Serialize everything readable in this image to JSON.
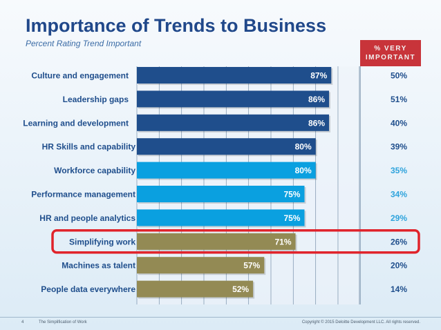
{
  "header": {
    "title": "Importance of Trends to Business",
    "subtitle": "Percent Rating Trend Important",
    "very_important_line1": "% VERY",
    "very_important_line2": "IMPORTANT"
  },
  "footer": {
    "page_number": "4",
    "left_text": "The Simplification of Work",
    "right_text": "Copyright © 2015 Deloitte Development LLC. All rights reserved."
  },
  "colors": {
    "dark_blue": "#1f4e8c",
    "light_blue": "#0aa0e0",
    "olive": "#938a54",
    "pct_dark": "#1f4e8c",
    "pct_light": "#2ea3dc",
    "highlight": "#e0232b"
  },
  "chart_data": {
    "type": "bar",
    "orientation": "horizontal",
    "title": "Importance of Trends to Business",
    "subtitle": "Percent Rating Trend Important",
    "xlim": [
      0,
      100
    ],
    "grid": true,
    "categories": [
      "Culture and engagement",
      "Leadership gaps",
      "Learning and development",
      "HR Skills and capability",
      "Workforce capability",
      "Performance management",
      "HR and people analytics",
      "Simplifying work",
      "Machines as talent",
      "People data everywhere"
    ],
    "values": [
      87,
      86,
      86,
      80,
      80,
      75,
      75,
      71,
      57,
      52
    ],
    "value_labels": [
      "87%",
      "86%",
      "86%",
      "80%",
      "80%",
      "75%",
      "75%",
      "71%",
      "57%",
      "52%"
    ],
    "bar_colors": [
      "dark_blue",
      "dark_blue",
      "dark_blue",
      "dark_blue",
      "light_blue",
      "light_blue",
      "light_blue",
      "olive",
      "olive",
      "olive"
    ],
    "very_important": [
      "50%",
      "51%",
      "40%",
      "39%",
      "35%",
      "34%",
      "29%",
      "26%",
      "20%",
      "14%"
    ],
    "very_important_colors": [
      "pct_dark",
      "pct_dark",
      "pct_dark",
      "pct_dark",
      "pct_light",
      "pct_light",
      "pct_light",
      "pct_dark",
      "pct_dark",
      "pct_dark"
    ],
    "highlighted_category": "Simplifying work"
  }
}
